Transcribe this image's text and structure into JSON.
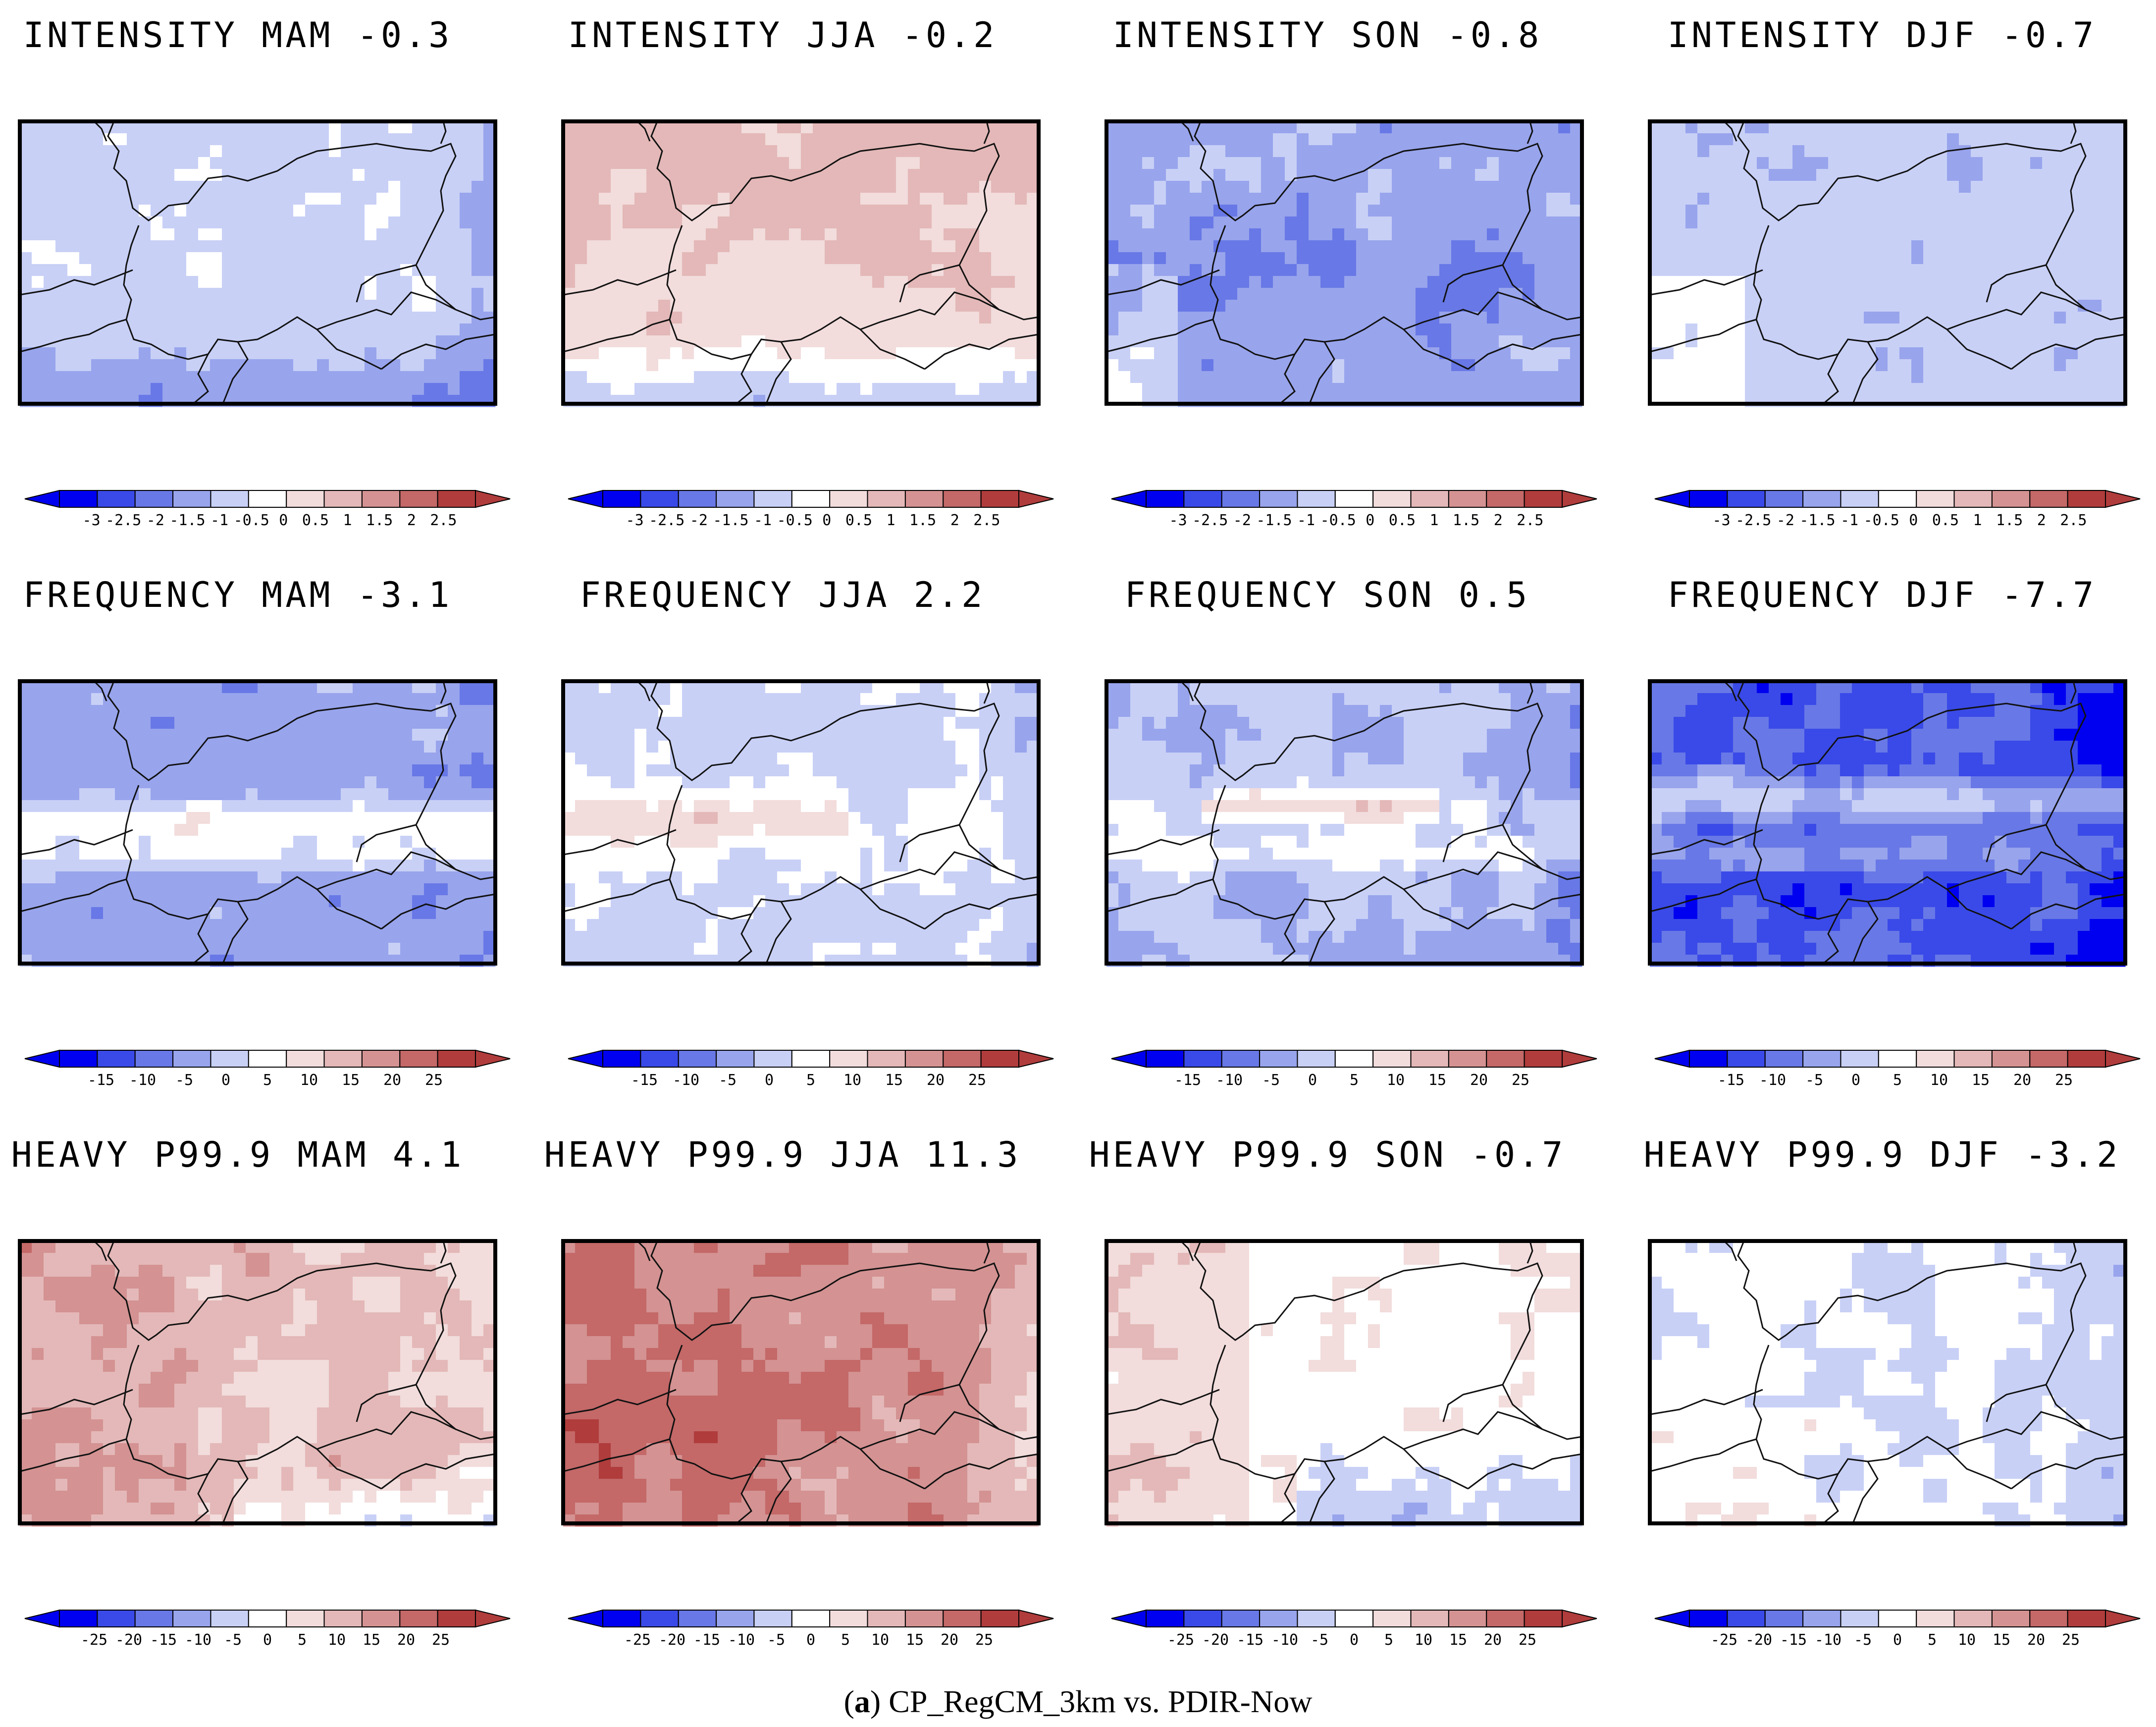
{
  "figure": {
    "caption_label": "a",
    "caption_text": "CP_RegCM_3km vs. PDIR-Now"
  },
  "colors": {
    "frame": "#000000",
    "border": "#111111",
    "palette": [
      "#0000f0",
      "#3a4ae8",
      "#6878e6",
      "#98a4ec",
      "#c8d0f6",
      "#ffffff",
      "#f2dcdc",
      "#e4b8b8",
      "#d49292",
      "#c46868",
      "#b03c3c"
    ]
  },
  "colorbars": {
    "intensity": [
      "-3",
      "-2.5",
      "-2",
      "-1.5",
      "-1",
      "-0.5",
      "0",
      "0.5",
      "1",
      "1.5",
      "2",
      "2.5"
    ],
    "frequency": [
      "-15",
      "-10",
      "-5",
      "0",
      "5",
      "10",
      "15",
      "20",
      "25"
    ],
    "heavy": [
      "-25",
      "-20",
      "-15",
      "-10",
      "-5",
      "0",
      "5",
      "10",
      "15",
      "20",
      "25"
    ]
  },
  "panels": [
    {
      "title": "INTENSITY MAM -0.3",
      "row": "intensity",
      "mean": -0.3,
      "range": 3,
      "pattern": "intensity_mam"
    },
    {
      "title": "INTENSITY JJA -0.2",
      "row": "intensity",
      "mean": -0.2,
      "range": 3,
      "pattern": "intensity_jja"
    },
    {
      "title": "INTENSITY SON -0.8",
      "row": "intensity",
      "mean": -0.8,
      "range": 3,
      "pattern": "intensity_son"
    },
    {
      "title": "INTENSITY DJF -0.7",
      "row": "intensity",
      "mean": -0.7,
      "range": 3,
      "pattern": "intensity_djf"
    },
    {
      "title": "FREQUENCY MAM -3.1",
      "row": "frequency",
      "mean": -3.1,
      "range": 25,
      "pattern": "freq_mam"
    },
    {
      "title": "FREQUENCY JJA 2.2",
      "row": "frequency",
      "mean": 2.2,
      "range": 25,
      "pattern": "freq_jja"
    },
    {
      "title": "FREQUENCY SON 0.5",
      "row": "frequency",
      "mean": 0.5,
      "range": 25,
      "pattern": "freq_son"
    },
    {
      "title": "FREQUENCY DJF -7.7",
      "row": "frequency",
      "mean": -7.7,
      "range": 25,
      "pattern": "freq_djf"
    },
    {
      "title": "HEAVY P99.9 MAM 4.1",
      "row": "heavy",
      "mean": 4.1,
      "range": 25,
      "pattern": "heavy_mam"
    },
    {
      "title": "HEAVY P99.9 JJA 11.3",
      "row": "heavy",
      "mean": 11.3,
      "range": 25,
      "pattern": "heavy_jja"
    },
    {
      "title": "HEAVY P99.9 SON -0.7",
      "row": "heavy",
      "mean": -0.7,
      "range": 25,
      "pattern": "heavy_son"
    },
    {
      "title": "HEAVY P99.9 DJF -3.2",
      "row": "heavy",
      "mean": -3.2,
      "range": 25,
      "pattern": "heavy_djf"
    }
  ]
}
